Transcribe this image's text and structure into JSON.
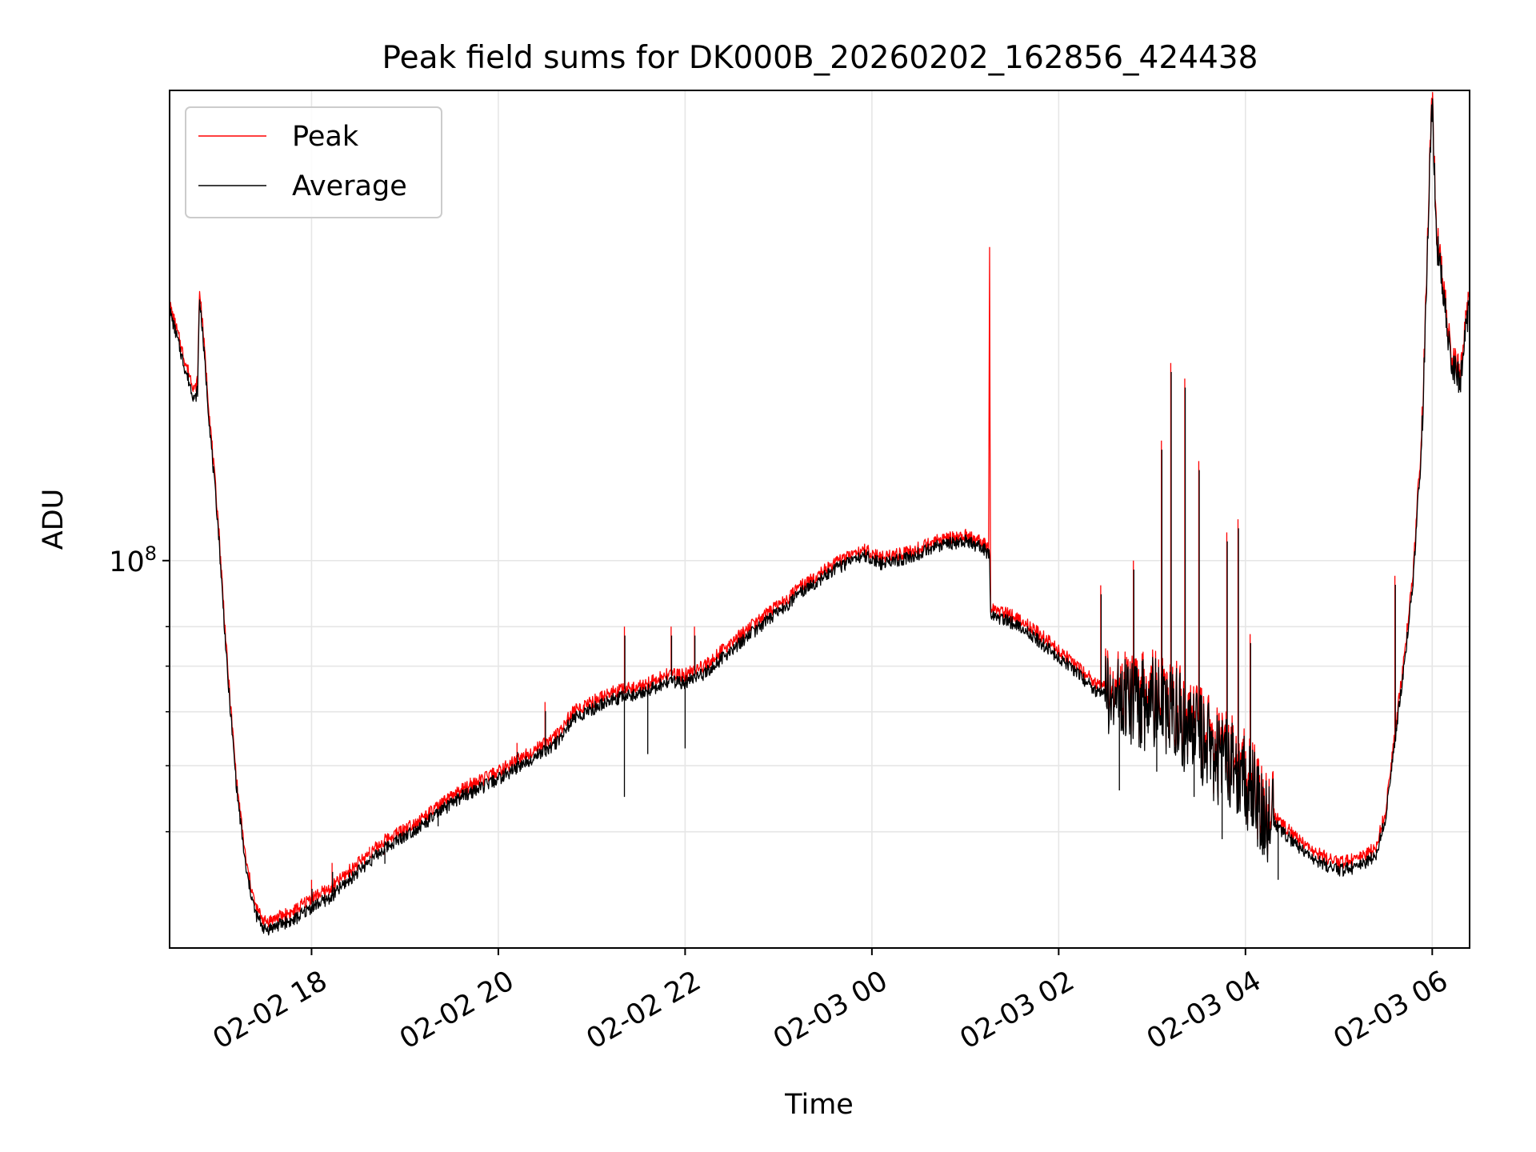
{
  "chart_data": {
    "type": "line",
    "title": "Peak field sums for DK000B_20260202_162856_424438",
    "xlabel": "Time",
    "ylabel": "ADU",
    "x_unit": "hours since 2026-02-02 00:00",
    "xlim": [
      16.48,
      30.4
    ],
    "ylim": [
      27000000,
      490000000
    ],
    "yscale": "log",
    "x_ticks": [
      {
        "value": 18,
        "label": "02-02 18"
      },
      {
        "value": 20,
        "label": "02-02 20"
      },
      {
        "value": 22,
        "label": "02-02 22"
      },
      {
        "value": 24,
        "label": "02-03 00"
      },
      {
        "value": 26,
        "label": "02-03 02"
      },
      {
        "value": 28,
        "label": "02-03 04"
      },
      {
        "value": 30,
        "label": "02-03 06"
      }
    ],
    "y_major_ticks": [
      {
        "value": 100000000,
        "base": "10",
        "exp": "8"
      }
    ],
    "y_minor_ticks": [
      40000000,
      50000000,
      60000000,
      70000000,
      80000000
    ],
    "grid": true,
    "legend": {
      "position": "upper-left",
      "entries": [
        {
          "label": "Peak",
          "color": "#ff0000"
        },
        {
          "label": "Average",
          "color": "#000000"
        }
      ]
    },
    "series": [
      {
        "name": "Peak",
        "color": "#ff0000",
        "x": [
          16.48,
          16.55,
          16.65,
          16.75,
          16.78,
          16.8,
          16.82,
          16.9,
          17.0,
          17.1,
          17.2,
          17.3,
          17.4,
          17.5,
          17.6,
          17.7,
          17.8,
          18.0,
          18.2,
          18.4,
          18.6,
          18.8,
          19.0,
          19.2,
          19.4,
          19.6,
          19.8,
          20.0,
          20.2,
          20.4,
          20.6,
          20.8,
          21.0,
          21.2,
          21.4,
          21.6,
          21.8,
          22.0,
          22.2,
          22.5,
          22.8,
          23.0,
          23.3,
          23.6,
          23.9,
          24.1,
          24.4,
          24.7,
          25.0,
          25.2,
          25.25,
          25.26,
          25.27,
          25.3,
          25.6,
          25.9,
          26.2,
          26.4,
          26.6,
          26.8,
          27.0,
          27.1,
          27.2,
          27.3,
          27.4,
          27.6,
          27.8,
          28.0,
          28.2,
          28.4,
          28.6,
          28.8,
          29.0,
          29.2,
          29.4,
          29.5,
          29.6,
          29.7,
          29.8,
          29.9,
          29.97,
          30.0,
          30.05,
          30.1,
          30.2,
          30.3,
          30.4
        ],
        "y": [
          238000000,
          220000000,
          195000000,
          178000000,
          184000000,
          250000000,
          235000000,
          168000000,
          115000000,
          70000000,
          47000000,
          36000000,
          31000000,
          29500000,
          29800000,
          30200000,
          30500000,
          32000000,
          33000000,
          35000000,
          37000000,
          39000000,
          40500000,
          42000000,
          44000000,
          46000000,
          47500000,
          49000000,
          51000000,
          53000000,
          55000000,
          60000000,
          62000000,
          64000000,
          65000000,
          66000000,
          68000000,
          68000000,
          70000000,
          76000000,
          82000000,
          86000000,
          93000000,
          99000000,
          104000000,
          101000000,
          103000000,
          107000000,
          109000000,
          106000000,
          104000000,
          300000000,
          86000000,
          85000000,
          82000000,
          76000000,
          70000000,
          66000000,
          64000000,
          64000000,
          64000000,
          63000000,
          62000000,
          61000000,
          58000000,
          55000000,
          52000000,
          49000000,
          44000000,
          41000000,
          38500000,
          37000000,
          36000000,
          36500000,
          38000000,
          43000000,
          56000000,
          72000000,
          98000000,
          170000000,
          370000000,
          480000000,
          300000000,
          270000000,
          200000000,
          190000000,
          245000000
        ]
      },
      {
        "name": "Average",
        "color": "#000000",
        "x": [
          16.48,
          16.55,
          16.65,
          16.75,
          16.78,
          16.8,
          16.82,
          16.9,
          17.0,
          17.1,
          17.2,
          17.3,
          17.4,
          17.5,
          17.6,
          17.7,
          17.8,
          18.0,
          18.2,
          18.4,
          18.6,
          18.8,
          19.0,
          19.2,
          19.4,
          19.6,
          19.8,
          20.0,
          20.2,
          20.4,
          20.6,
          20.8,
          21.0,
          21.2,
          21.4,
          21.6,
          21.8,
          22.0,
          22.2,
          22.5,
          22.8,
          23.0,
          23.3,
          23.6,
          23.9,
          24.1,
          24.4,
          24.7,
          25.0,
          25.2,
          25.25,
          25.26,
          25.27,
          25.3,
          25.6,
          25.9,
          26.2,
          26.4,
          26.6,
          26.8,
          27.0,
          27.1,
          27.2,
          27.3,
          27.4,
          27.6,
          27.8,
          28.0,
          28.2,
          28.4,
          28.6,
          28.8,
          29.0,
          29.2,
          29.4,
          29.5,
          29.6,
          29.7,
          29.8,
          29.9,
          29.97,
          30.0,
          30.05,
          30.1,
          30.2,
          30.3,
          30.4
        ],
        "y": [
          233000000,
          215000000,
          190000000,
          172000000,
          178000000,
          243000000,
          228000000,
          163000000,
          112000000,
          68000000,
          46000000,
          35000000,
          30300000,
          28700000,
          29000000,
          29400000,
          29600000,
          31000000,
          32000000,
          34000000,
          36000000,
          38000000,
          39500000,
          41000000,
          43000000,
          45000000,
          46300000,
          47800000,
          49700000,
          51700000,
          53600000,
          58500000,
          60500000,
          62400000,
          63400000,
          64400000,
          66300000,
          66300000,
          68200000,
          74000000,
          80000000,
          84000000,
          91000000,
          97000000,
          102000000,
          99000000,
          101000000,
          105000000,
          107000000,
          104000000,
          102000000,
          102000000,
          84000000,
          83000000,
          80000000,
          74000000,
          68500000,
          64300000,
          62400000,
          62400000,
          62400000,
          61400000,
          60500000,
          59500000,
          56600000,
          53600000,
          50700000,
          47800000,
          42900000,
          40000000,
          37500000,
          36000000,
          35100000,
          35500000,
          37000000,
          42000000,
          54500000,
          70000000,
          95000000,
          165000000,
          360000000,
          470000000,
          292000000,
          262000000,
          195000000,
          185000000,
          238000000
        ]
      }
    ],
    "spikes": [
      {
        "x": 18.0,
        "peak": 34000000
      },
      {
        "x": 18.22,
        "peak": 36000000
      },
      {
        "x": 18.62,
        "peak": 38000000
      },
      {
        "x": 18.78,
        "peak": 37000000
      },
      {
        "x": 19.35,
        "peak": 42000000
      },
      {
        "x": 19.55,
        "peak": 45000000
      },
      {
        "x": 19.7,
        "peak": 48000000
      },
      {
        "x": 20.2,
        "peak": 54000000
      },
      {
        "x": 20.5,
        "peak": 62000000
      },
      {
        "x": 21.35,
        "peak": 80000000
      },
      {
        "x": 21.85,
        "peak": 80000000
      },
      {
        "x": 22.1,
        "peak": 80000000
      },
      {
        "x": 26.45,
        "peak": 92000000
      },
      {
        "x": 26.8,
        "peak": 100000000
      },
      {
        "x": 27.1,
        "peak": 150000000
      },
      {
        "x": 27.2,
        "peak": 195000000
      },
      {
        "x": 27.35,
        "peak": 185000000
      },
      {
        "x": 27.5,
        "peak": 140000000
      },
      {
        "x": 27.8,
        "peak": 110000000
      },
      {
        "x": 27.92,
        "peak": 115000000
      },
      {
        "x": 28.05,
        "peak": 78000000
      },
      {
        "x": 29.6,
        "peak": 95000000
      }
    ],
    "dips": [
      {
        "x": 21.35,
        "low": 45000000
      },
      {
        "x": 21.6,
        "low": 52000000
      },
      {
        "x": 22.0,
        "low": 53000000
      },
      {
        "x": 26.65,
        "low": 46000000
      },
      {
        "x": 27.05,
        "low": 49000000
      },
      {
        "x": 27.45,
        "low": 45000000
      },
      {
        "x": 27.75,
        "low": 39000000
      },
      {
        "x": 28.2,
        "low": 37000000
      },
      {
        "x": 28.35,
        "low": 34000000
      }
    ]
  }
}
